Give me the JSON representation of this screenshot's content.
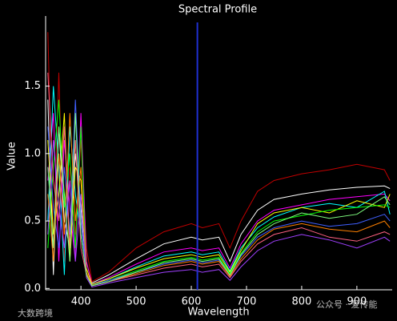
{
  "chart_data": {
    "type": "line",
    "title": "Spectral Profile",
    "x_label": "Wavelength",
    "y_label": "Value",
    "x": [
      340,
      350,
      360,
      370,
      380,
      390,
      400,
      410,
      420,
      450,
      500,
      550,
      600,
      620,
      650,
      670,
      690,
      720,
      750,
      800,
      850,
      900,
      950,
      960
    ],
    "xlim": [
      336,
      964
    ],
    "xticks": [
      400,
      500,
      600,
      700,
      800,
      900
    ],
    "ylim": [
      -0.01,
      2.02
    ],
    "yticks": [
      {
        "value": 0,
        "label": "0.0"
      },
      0.5,
      {
        "value": 1,
        "label": "1.0"
      },
      1.5
    ],
    "cursor_x": 611,
    "cursor_color": "#1f2fd0",
    "series": [
      {
        "color": "#c00000",
        "values": [
          1.9,
          0.3,
          1.6,
          0.2,
          0.9,
          0.4,
          1.1,
          0.3,
          0.05,
          0.12,
          0.3,
          0.42,
          0.48,
          0.45,
          0.48,
          0.3,
          0.5,
          0.72,
          0.8,
          0.85,
          0.88,
          0.92,
          0.88,
          0.8
        ]
      },
      {
        "color": "#ffffff",
        "values": [
          1.4,
          0.1,
          1.2,
          0.5,
          0.3,
          1.0,
          0.6,
          0.1,
          0.04,
          0.1,
          0.22,
          0.33,
          0.38,
          0.36,
          0.38,
          0.2,
          0.4,
          0.58,
          0.66,
          0.7,
          0.73,
          0.75,
          0.76,
          0.74
        ]
      },
      {
        "color": "#ff00ff",
        "values": [
          0.8,
          1.3,
          0.2,
          1.1,
          0.6,
          0.2,
          1.3,
          0.2,
          0.03,
          0.08,
          0.18,
          0.27,
          0.3,
          0.28,
          0.3,
          0.15,
          0.33,
          0.5,
          0.58,
          0.62,
          0.66,
          0.68,
          0.7,
          0.65
        ]
      },
      {
        "color": "#00ffff",
        "values": [
          0.5,
          1.5,
          0.9,
          0.1,
          1.2,
          0.7,
          0.4,
          0.1,
          0.03,
          0.07,
          0.16,
          0.24,
          0.27,
          0.25,
          0.27,
          0.13,
          0.3,
          0.45,
          0.53,
          0.6,
          0.63,
          0.6,
          0.72,
          0.55
        ]
      },
      {
        "color": "#ffff00",
        "values": [
          1.1,
          0.4,
          0.7,
          1.3,
          0.2,
          0.9,
          0.8,
          0.15,
          0.03,
          0.07,
          0.15,
          0.22,
          0.25,
          0.23,
          0.25,
          0.12,
          0.28,
          0.48,
          0.56,
          0.6,
          0.56,
          0.65,
          0.6,
          0.7
        ]
      },
      {
        "color": "#00ff00",
        "values": [
          0.3,
          0.9,
          1.4,
          0.6,
          1.0,
          0.3,
          1.2,
          0.1,
          0.02,
          0.06,
          0.13,
          0.2,
          0.23,
          0.21,
          0.23,
          0.11,
          0.26,
          0.42,
          0.5,
          0.54,
          0.58,
          0.6,
          0.62,
          0.6
        ]
      },
      {
        "color": "#4060ff",
        "values": [
          1.2,
          0.6,
          0.3,
          0.9,
          0.4,
          1.4,
          0.5,
          0.1,
          0.02,
          0.06,
          0.12,
          0.18,
          0.21,
          0.19,
          0.21,
          0.1,
          0.24,
          0.38,
          0.45,
          0.5,
          0.46,
          0.48,
          0.55,
          0.5
        ]
      },
      {
        "color": "#ff8000",
        "values": [
          0.7,
          0.2,
          1.0,
          0.4,
          1.3,
          0.5,
          0.9,
          0.12,
          0.02,
          0.05,
          0.11,
          0.17,
          0.2,
          0.18,
          0.2,
          0.09,
          0.22,
          0.36,
          0.44,
          0.48,
          0.44,
          0.42,
          0.5,
          0.45
        ]
      },
      {
        "color": "#ff6080",
        "values": [
          1.6,
          0.8,
          0.5,
          1.2,
          0.3,
          1.1,
          0.3,
          0.1,
          0.02,
          0.05,
          0.1,
          0.15,
          0.18,
          0.16,
          0.18,
          0.08,
          0.2,
          0.33,
          0.4,
          0.45,
          0.38,
          0.35,
          0.42,
          0.4
        ]
      },
      {
        "color": "#a040ff",
        "values": [
          0.4,
          1.1,
          0.6,
          0.3,
          0.8,
          0.2,
          0.7,
          0.08,
          0.01,
          0.04,
          0.08,
          0.12,
          0.14,
          0.12,
          0.14,
          0.06,
          0.16,
          0.28,
          0.35,
          0.4,
          0.36,
          0.3,
          0.38,
          0.35
        ]
      },
      {
        "color": "#80ff80",
        "values": [
          0.9,
          0.3,
          1.2,
          0.7,
          0.2,
          1.3,
          0.4,
          0.1,
          0.02,
          0.05,
          0.12,
          0.19,
          0.22,
          0.2,
          0.22,
          0.1,
          0.25,
          0.4,
          0.48,
          0.56,
          0.52,
          0.55,
          0.68,
          0.62
        ]
      }
    ],
    "watermark_left": "大数跨境",
    "watermark_right": "公众号 · 爱传能"
  }
}
